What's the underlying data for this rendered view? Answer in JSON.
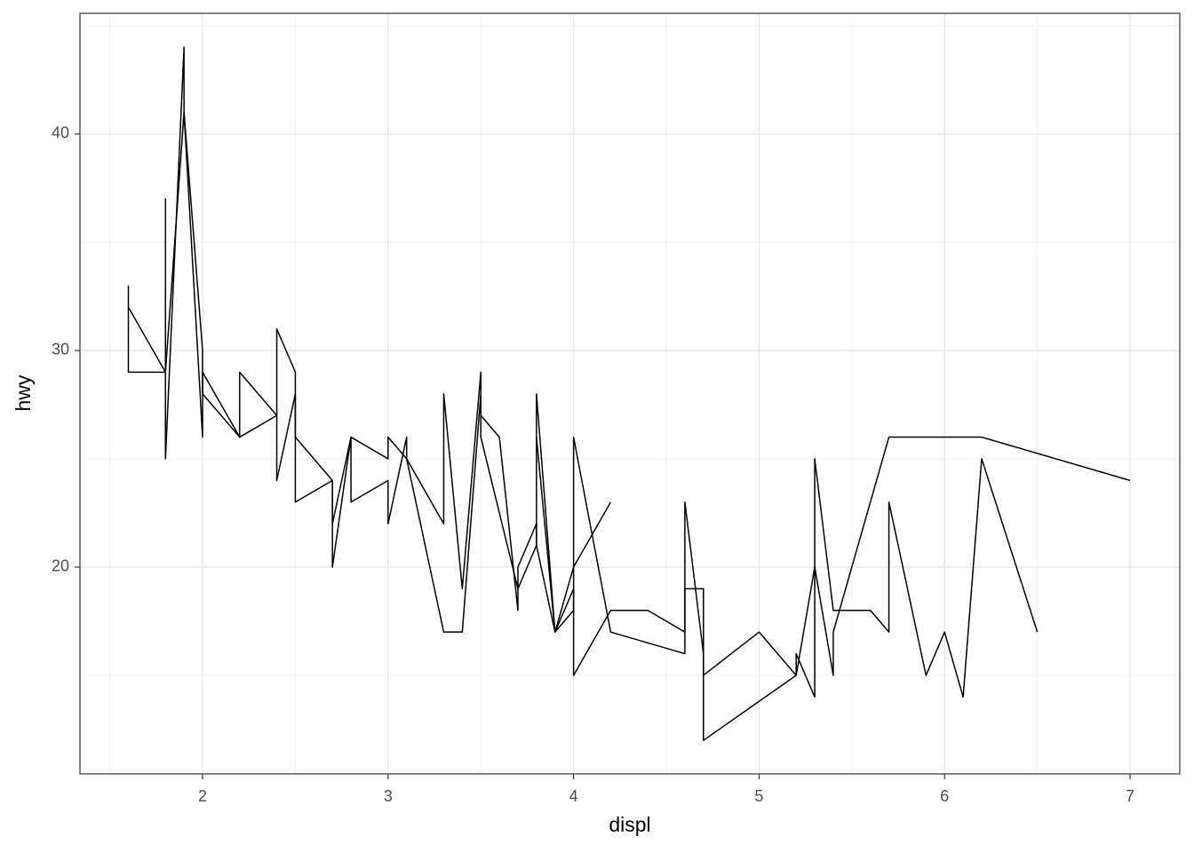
{
  "chart_data": {
    "type": "line",
    "x_label": "displ",
    "y_label": "hwy",
    "xlim": [
      1.339,
      7.268
    ],
    "ylim": [
      10.45,
      45.57
    ],
    "xticks": [
      2,
      3,
      4,
      5,
      6,
      7
    ],
    "yticks": [
      20,
      30,
      40
    ],
    "xminor": [
      1.5,
      2.5,
      3.5,
      4.5,
      5.5,
      6.5
    ],
    "yminor": [
      15,
      25,
      35,
      45
    ],
    "grid": true,
    "series": [
      {
        "color": "#000000",
        "x": [
          1.6,
          1.6,
          1.8,
          1.8,
          1.8,
          1.9,
          1.9,
          2.0,
          2.0,
          2.2,
          2.2,
          2.4,
          2.4,
          2.5,
          2.5,
          2.7,
          2.7,
          2.8,
          3.0,
          3.0,
          3.1,
          3.3,
          3.3,
          3.4,
          3.5,
          3.5,
          3.7,
          3.8,
          3.8,
          3.9,
          4.0,
          4.2
        ],
        "values": [
          33,
          29,
          29,
          37,
          25,
          44,
          41,
          26,
          29,
          26,
          29,
          27,
          31,
          29,
          26,
          24,
          22,
          26,
          25,
          26,
          25,
          22,
          28,
          19,
          29,
          26,
          19,
          21,
          28,
          17,
          20,
          23
        ]
      },
      {
        "color": "#000000",
        "x": [
          1.6,
          1.8,
          1.9,
          2.0,
          2.0,
          2.2,
          2.4,
          2.4,
          2.5,
          2.5,
          2.7,
          2.7,
          2.8,
          2.8,
          3.0,
          3.0,
          3.1,
          3.1,
          3.3,
          3.3,
          3.4,
          3.5,
          3.5,
          3.6,
          3.7,
          3.7,
          3.8,
          3.8,
          3.9,
          4.0,
          4.0,
          4.2,
          4.4,
          4.6,
          4.6,
          4.7,
          4.7,
          5.0,
          5.2,
          5.2,
          5.3,
          5.3,
          5.4,
          5.4,
          5.6,
          5.7,
          5.7,
          5.9,
          6.0,
          6.1,
          6.2,
          6.5
        ],
        "values": [
          32,
          29,
          41,
          30,
          28,
          26,
          27,
          24,
          28,
          23,
          24,
          20,
          26,
          23,
          24,
          22,
          26,
          25,
          17,
          17,
          17,
          28,
          27,
          26,
          18,
          20,
          22,
          21,
          17,
          19,
          15,
          18,
          18,
          17,
          23,
          16,
          15,
          17,
          15,
          16,
          14,
          25,
          18,
          18,
          18,
          17,
          23,
          15,
          17,
          14,
          25,
          17
        ]
      },
      {
        "color": "#000000",
        "x": [
          3.8,
          3.9,
          4.0,
          4.0,
          4.2,
          4.6,
          4.6,
          4.7,
          4.7,
          5.2,
          5.3,
          5.4,
          5.4,
          5.7,
          6.2,
          7.0
        ],
        "values": [
          26,
          17,
          18,
          26,
          17,
          16,
          19,
          19,
          12,
          15,
          20,
          15,
          17,
          26,
          26,
          24
        ]
      }
    ]
  }
}
